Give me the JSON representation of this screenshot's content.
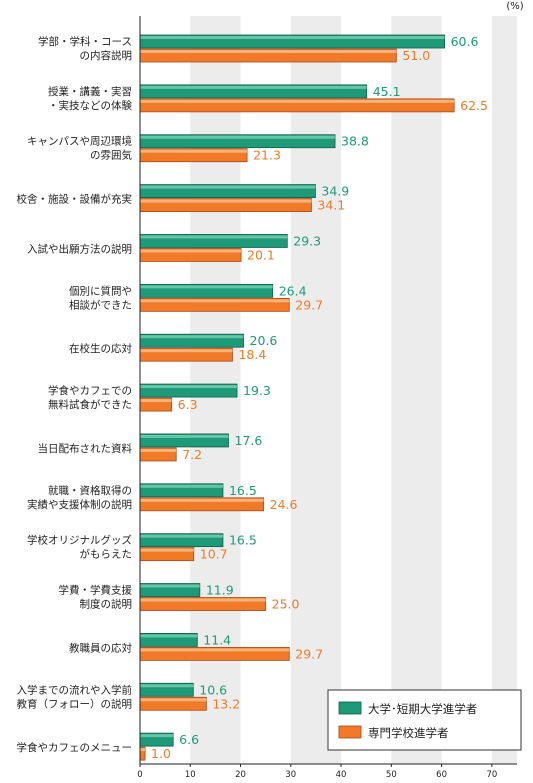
{
  "chart_data": {
    "type": "bar",
    "orientation": "horizontal",
    "unit": "(%)",
    "xlim": [
      0,
      75
    ],
    "ticks": [
      "0",
      "10",
      "20",
      "30",
      "40",
      "50",
      "60",
      "70"
    ],
    "categories": [
      [
        "学部・学科・コース",
        "の内容説明"
      ],
      [
        "授業・講義・実習",
        "・実技などの体験"
      ],
      [
        "キャンパスや周辺環境",
        "の雰囲気"
      ],
      [
        "校舎・施設・設備が充実"
      ],
      [
        "入試や出願方法の説明"
      ],
      [
        "個別に質問や",
        "相談ができた"
      ],
      [
        "在校生の応対"
      ],
      [
        "学食やカフェでの",
        "無料試食ができた"
      ],
      [
        "当日配布された資料"
      ],
      [
        "就職・資格取得の",
        "実績や支援体制の説明"
      ],
      [
        "学校オリジナルグッズ",
        "がもらえた"
      ],
      [
        "学費・学費支援",
        "制度の説明"
      ],
      [
        "教職員の応対"
      ],
      [
        "入学までの流れや入学前",
        "教育（フォロー）の説明"
      ],
      [
        "学食やカフェのメニュー"
      ]
    ],
    "series": [
      {
        "name": "大学･短期大学進学者",
        "color": "#1e9a78",
        "values": [
          60.6,
          45.1,
          38.8,
          34.9,
          29.3,
          26.4,
          20.6,
          19.3,
          17.6,
          16.5,
          16.5,
          11.9,
          11.4,
          10.6,
          6.6
        ],
        "labels": [
          "60.6",
          "45.1",
          "38.8",
          "34.9",
          "29.3",
          "26.4",
          "20.6",
          "19.3",
          "17.6",
          "16.5",
          "16.5",
          "11.9",
          "11.4",
          "10.6",
          "6.6"
        ]
      },
      {
        "name": "専門学校進学者",
        "color": "#f07a28",
        "values": [
          51.0,
          62.5,
          21.3,
          34.1,
          20.1,
          29.7,
          18.4,
          6.3,
          7.2,
          24.6,
          10.7,
          25.0,
          29.7,
          13.2,
          1.0
        ],
        "labels": [
          "51.0",
          "62.5",
          "21.3",
          "34.1",
          "20.1",
          "29.7",
          "18.4",
          "6.3",
          "7.2",
          "24.6",
          "10.7",
          "25.0",
          "29.7",
          "13.2",
          "1.0"
        ]
      }
    ],
    "grid": "alternating-bands",
    "legend": "bottom-right"
  }
}
